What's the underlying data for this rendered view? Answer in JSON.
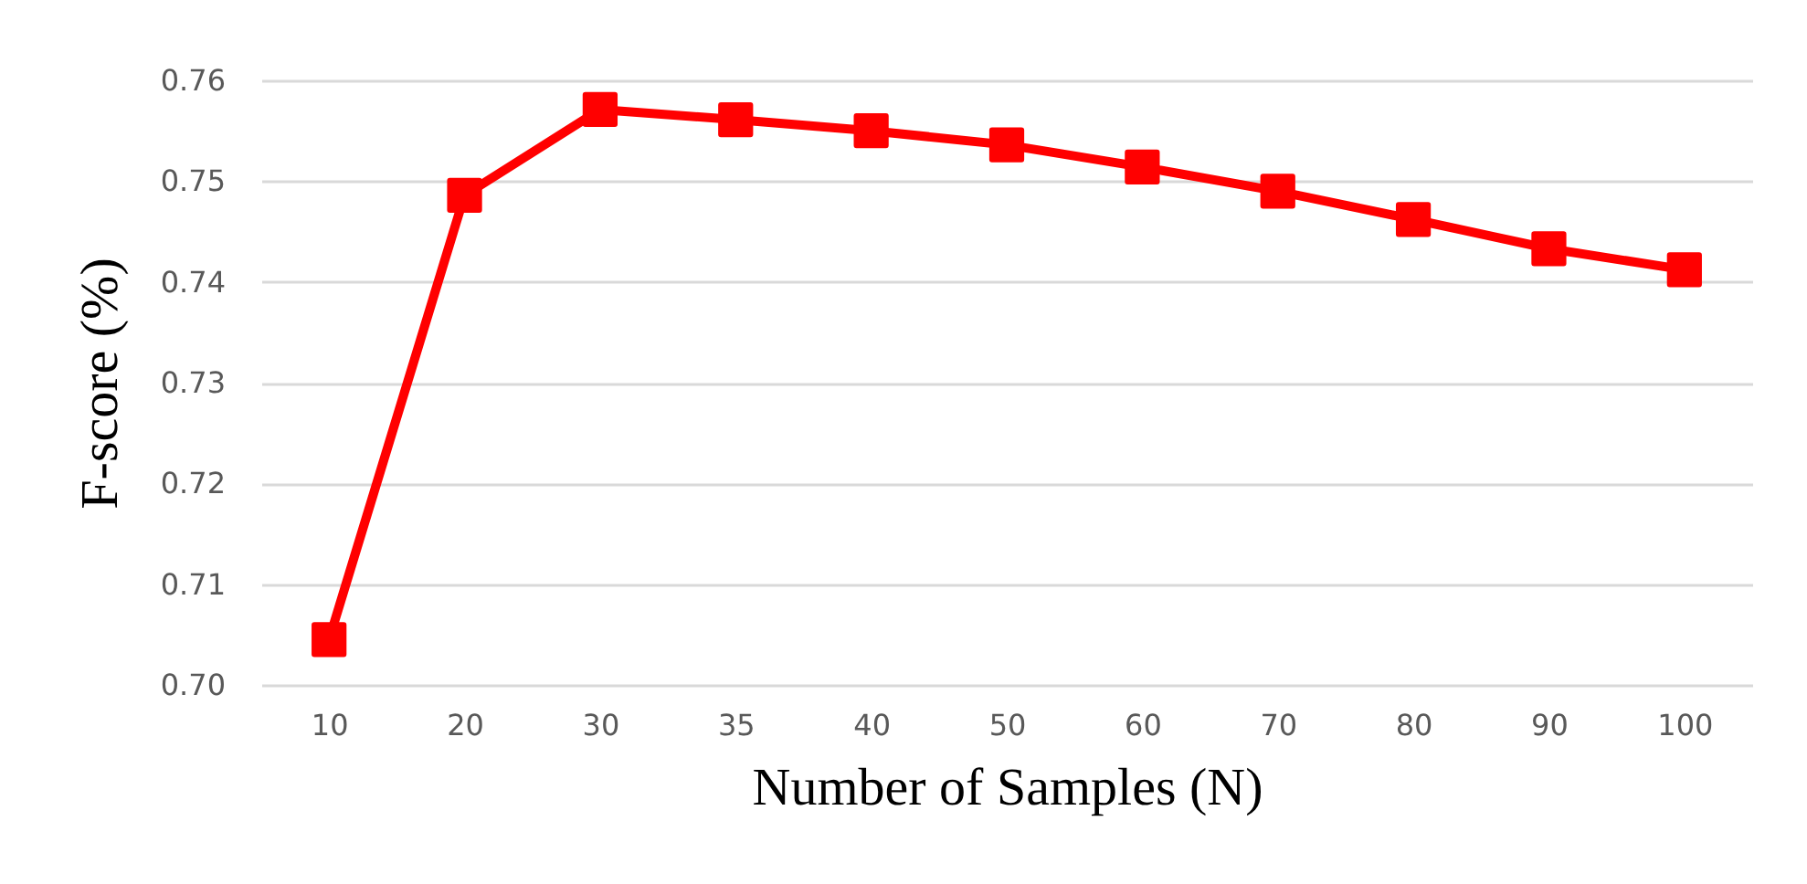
{
  "chart_data": {
    "type": "line",
    "xlabel": "Number of Samples (N)",
    "ylabel": "F-score (%)",
    "categories": [
      "10",
      "20",
      "30",
      "35",
      "40",
      "50",
      "60",
      "70",
      "80",
      "90",
      "100"
    ],
    "series": [
      {
        "color": "#ff0000",
        "values": [
          0.7045,
          0.7486,
          0.7571,
          0.7561,
          0.755,
          0.7536,
          0.7514,
          0.749,
          0.7462,
          0.7433,
          0.7412
        ]
      }
    ],
    "ylim": [
      0.7,
      0.76
    ],
    "yticks": [
      {
        "value": 0.7,
        "label": "0.70"
      },
      {
        "value": 0.71,
        "label": "0.71"
      },
      {
        "value": 0.72,
        "label": "0.72"
      },
      {
        "value": 0.73,
        "label": "0.73"
      },
      {
        "value": 0.74,
        "label": "0.74"
      },
      {
        "value": 0.75,
        "label": "0.75"
      },
      {
        "value": 0.76,
        "label": "0.76"
      }
    ],
    "grid": "y",
    "marker": "square",
    "legend": false
  }
}
